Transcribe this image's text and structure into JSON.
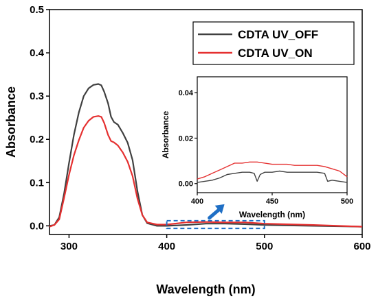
{
  "chart_data": {
    "type": "line",
    "xlabel": "Wavelength (nm)",
    "ylabel": "Absorbance",
    "xlim": [
      280,
      600
    ],
    "ylim": [
      -0.02,
      0.5
    ],
    "x_ticks": [
      "300",
      "400",
      "500",
      "600"
    ],
    "y_ticks": [
      "0.0",
      "0.1",
      "0.2",
      "0.3",
      "0.4",
      "0.5"
    ],
    "grid": false,
    "legend_position": "top-right",
    "series": [
      {
        "name": "CDTA UV_OFF",
        "color": "#404040",
        "points": [
          [
            280,
            0.0
          ],
          [
            285,
            0.002
          ],
          [
            290,
            0.02
          ],
          [
            295,
            0.075
          ],
          [
            300,
            0.145
          ],
          [
            305,
            0.21
          ],
          [
            310,
            0.262
          ],
          [
            315,
            0.3
          ],
          [
            320,
            0.318
          ],
          [
            325,
            0.326
          ],
          [
            330,
            0.328
          ],
          [
            333,
            0.325
          ],
          [
            336,
            0.31
          ],
          [
            340,
            0.283
          ],
          [
            343,
            0.252
          ],
          [
            346,
            0.24
          ],
          [
            350,
            0.234
          ],
          [
            355,
            0.215
          ],
          [
            360,
            0.192
          ],
          [
            365,
            0.152
          ],
          [
            370,
            0.08
          ],
          [
            375,
            0.025
          ],
          [
            380,
            0.006
          ],
          [
            390,
            0.0
          ],
          [
            400,
            0.0
          ],
          [
            420,
            0.002
          ],
          [
            440,
            0.005
          ],
          [
            460,
            0.005
          ],
          [
            480,
            0.004
          ],
          [
            500,
            0.002
          ],
          [
            550,
            0.0
          ],
          [
            600,
            -0.002
          ]
        ]
      },
      {
        "name": "CDTA UV_ON",
        "color": "#e53030",
        "points": [
          [
            280,
            -0.002
          ],
          [
            285,
            0.002
          ],
          [
            290,
            0.015
          ],
          [
            295,
            0.065
          ],
          [
            300,
            0.118
          ],
          [
            305,
            0.163
          ],
          [
            310,
            0.198
          ],
          [
            315,
            0.227
          ],
          [
            320,
            0.243
          ],
          [
            325,
            0.252
          ],
          [
            330,
            0.254
          ],
          [
            333,
            0.252
          ],
          [
            336,
            0.238
          ],
          [
            340,
            0.21
          ],
          [
            343,
            0.196
          ],
          [
            346,
            0.193
          ],
          [
            350,
            0.186
          ],
          [
            355,
            0.17
          ],
          [
            360,
            0.148
          ],
          [
            365,
            0.115
          ],
          [
            370,
            0.063
          ],
          [
            375,
            0.025
          ],
          [
            380,
            0.008
          ],
          [
            390,
            0.003
          ],
          [
            400,
            0.003
          ],
          [
            420,
            0.008
          ],
          [
            440,
            0.009
          ],
          [
            460,
            0.008
          ],
          [
            480,
            0.008
          ],
          [
            500,
            0.005
          ],
          [
            550,
            0.002
          ],
          [
            600,
            -0.002
          ]
        ]
      }
    ],
    "inset": {
      "xlabel": "Wavelength (nm)",
      "ylabel": "Absorbance",
      "xlim": [
        400,
        500
      ],
      "ylim": [
        -0.004,
        0.047
      ],
      "x_ticks": [
        "400",
        "450",
        "500"
      ],
      "y_ticks": [
        "0.00",
        "0.02",
        "0.04"
      ],
      "series": [
        {
          "name": "CDTA UV_OFF",
          "color": "#404040",
          "points": [
            [
              400,
              0.0005
            ],
            [
              405,
              0.001
            ],
            [
              410,
              0.0015
            ],
            [
              415,
              0.0025
            ],
            [
              420,
              0.004
            ],
            [
              425,
              0.0045
            ],
            [
              430,
              0.005
            ],
            [
              435,
              0.005
            ],
            [
              438,
              0.0045
            ],
            [
              440,
              0.001
            ],
            [
              442,
              0.004
            ],
            [
              445,
              0.005
            ],
            [
              450,
              0.005
            ],
            [
              455,
              0.0055
            ],
            [
              460,
              0.005
            ],
            [
              465,
              0.005
            ],
            [
              470,
              0.005
            ],
            [
              475,
              0.005
            ],
            [
              480,
              0.005
            ],
            [
              485,
              0.0045
            ],
            [
              487,
              0.001
            ],
            [
              490,
              0.0015
            ],
            [
              495,
              0.001
            ],
            [
              500,
              0.0005
            ]
          ]
        },
        {
          "name": "CDTA UV_ON",
          "color": "#e53030",
          "points": [
            [
              400,
              0.002
            ],
            [
              405,
              0.003
            ],
            [
              410,
              0.0045
            ],
            [
              415,
              0.006
            ],
            [
              420,
              0.0075
            ],
            [
              425,
              0.009
            ],
            [
              430,
              0.009
            ],
            [
              435,
              0.0095
            ],
            [
              440,
              0.0095
            ],
            [
              445,
              0.009
            ],
            [
              450,
              0.0085
            ],
            [
              455,
              0.0085
            ],
            [
              460,
              0.0085
            ],
            [
              465,
              0.008
            ],
            [
              470,
              0.008
            ],
            [
              475,
              0.008
            ],
            [
              480,
              0.008
            ],
            [
              485,
              0.0075
            ],
            [
              490,
              0.0065
            ],
            [
              495,
              0.0055
            ],
            [
              500,
              0.003
            ]
          ]
        }
      ]
    },
    "highlight_box": {
      "x_range": [
        400,
        500
      ],
      "y_range": [
        -0.006,
        0.012
      ],
      "color": "#1f6fc5"
    }
  }
}
